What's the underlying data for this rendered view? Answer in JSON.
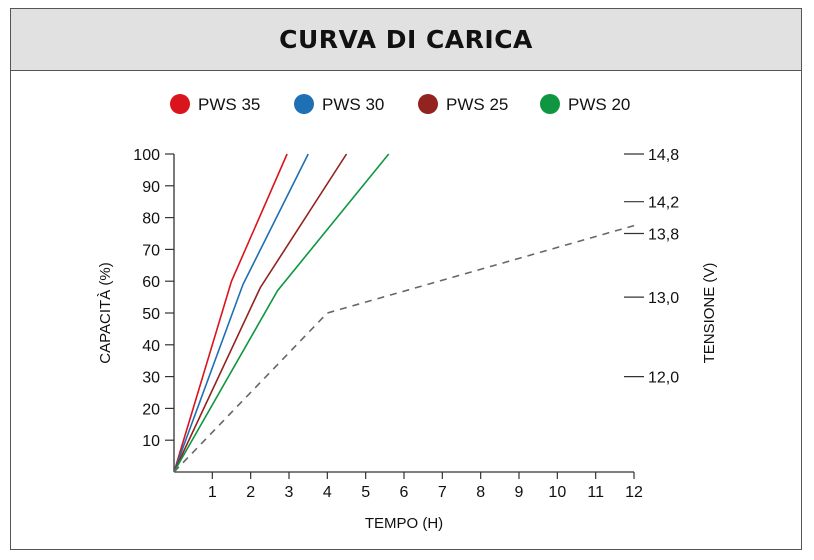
{
  "chart_data": {
    "type": "line",
    "title": "CURVA DI CARICA",
    "xlabel": "TEMPO (H)",
    "ylabel": "CAPACITÀ (%)",
    "y2label": "TENSIONE (V)",
    "xlim": [
      0,
      12
    ],
    "ylim": [
      0,
      100
    ],
    "y2lim": [
      10.8,
      14.8
    ],
    "xticks": [
      "1",
      "2",
      "3",
      "4",
      "5",
      "6",
      "7",
      "8",
      "9",
      "10",
      "11",
      "12"
    ],
    "yticks": [
      "10",
      "20",
      "30",
      "40",
      "50",
      "60",
      "70",
      "80",
      "90",
      "100"
    ],
    "y2ticks": [
      {
        "label": "12,0",
        "value": 12.0
      },
      {
        "label": "13,0",
        "value": 13.0
      },
      {
        "label": "13,8",
        "value": 13.8
      },
      {
        "label": "14,2",
        "value": 14.2
      },
      {
        "label": "14,8",
        "value": 14.8
      }
    ],
    "legend_position": "top",
    "grid": false,
    "series": [
      {
        "name": "PWS 35",
        "color": "#d9141c",
        "x": [
          0,
          1.5,
          2.95
        ],
        "y": [
          0,
          60,
          100
        ]
      },
      {
        "name": "PWS 30",
        "color": "#1f6fb5",
        "x": [
          0,
          1.8,
          3.5
        ],
        "y": [
          0,
          59,
          100
        ]
      },
      {
        "name": "PWS 25",
        "color": "#92231f",
        "x": [
          0,
          2.25,
          4.5
        ],
        "y": [
          0,
          58,
          100
        ]
      },
      {
        "name": "PWS 20",
        "color": "#0f9640",
        "x": [
          0,
          2.7,
          5.6
        ],
        "y": [
          0,
          57,
          100
        ]
      }
    ],
    "voltage_curve": {
      "color": "#666666",
      "dash": true,
      "x": [
        0,
        4.0,
        12.0
      ],
      "v": [
        10.8,
        12.8,
        13.9
      ]
    }
  }
}
